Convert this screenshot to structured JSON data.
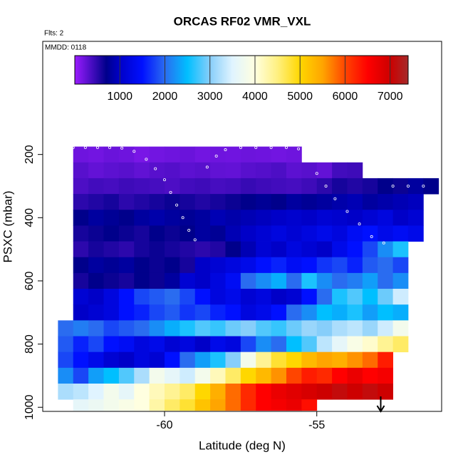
{
  "chart_data": {
    "type": "heatmap",
    "title": "ORCAS RF02 VMR_VXL",
    "annotations": [
      "Flts: 2",
      "MMDD: 0118"
    ],
    "xlabel": "Latitude (deg N)",
    "ylabel": "PSXC (mbar)",
    "xlim": [
      -64.0,
      -50.9
    ],
    "xticks": [
      -60,
      -55
    ],
    "ylim": [
      1013,
      -158
    ],
    "yticks": [
      200,
      400,
      600,
      800,
      1000
    ],
    "clim": [
      0,
      7400
    ],
    "cticks": [
      1000,
      2000,
      3000,
      4000,
      5000,
      6000,
      7000
    ],
    "colorscale": [
      {
        "value": 0,
        "color": "#9a1cff"
      },
      {
        "value": 700,
        "color": "#00008b"
      },
      {
        "value": 1000,
        "color": "#0000c8"
      },
      {
        "value": 1500,
        "color": "#0010ff"
      },
      {
        "value": 2000,
        "color": "#2a6cf0"
      },
      {
        "value": 2500,
        "color": "#00bfff"
      },
      {
        "value": 3000,
        "color": "#87cefa"
      },
      {
        "value": 3500,
        "color": "#e0f4ff"
      },
      {
        "value": 4000,
        "color": "#ffffe0"
      },
      {
        "value": 4500,
        "color": "#fff080"
      },
      {
        "value": 5000,
        "color": "#ffd700"
      },
      {
        "value": 5500,
        "color": "#ffa500"
      },
      {
        "value": 6000,
        "color": "#ff4500"
      },
      {
        "value": 6500,
        "color": "#ff0000"
      },
      {
        "value": 7000,
        "color": "#cd0000"
      },
      {
        "value": 7400,
        "color": "#a52a2a"
      }
    ],
    "dx": 0.5,
    "rows": [
      {
        "ptop": 175,
        "pbot": 225,
        "x0": -63,
        "values": [
          200,
          180,
          220,
          200,
          150,
          180,
          200,
          220,
          180,
          200,
          190,
          210,
          200,
          180,
          200
        ]
      },
      {
        "ptop": 225,
        "pbot": 275,
        "x0": -63,
        "values": [
          300,
          250,
          280,
          300,
          260,
          300,
          320,
          280,
          300,
          260,
          250,
          300,
          320,
          350,
          280,
          300,
          250,
          400,
          420
        ]
      },
      {
        "ptop": 275,
        "pbot": 325,
        "x0": -63,
        "values": [
          350,
          400,
          380,
          420,
          400,
          380,
          350,
          400,
          420,
          380,
          400,
          450,
          420,
          400,
          380,
          420,
          500,
          600,
          550,
          600,
          700,
          650,
          800,
          700
        ]
      },
      {
        "ptop": 325,
        "pbot": 375,
        "x0": -63,
        "values": [
          500,
          550,
          600,
          500,
          550,
          600,
          650,
          600,
          550,
          600,
          650,
          700,
          750,
          700,
          800,
          750,
          800,
          850,
          900,
          800,
          850,
          900,
          950
        ]
      },
      {
        "ptop": 375,
        "pbot": 425,
        "x0": -63,
        "values": [
          700,
          800,
          750,
          700,
          800,
          850,
          800,
          750,
          800,
          900,
          850,
          900,
          950,
          1000,
          1050,
          1000,
          1100,
          1050,
          1000,
          1100,
          1200,
          1000,
          1100
        ]
      },
      {
        "ptop": 425,
        "pbot": 475,
        "x0": -63,
        "values": [
          600,
          650,
          700,
          650,
          600,
          700,
          650,
          700,
          800,
          750,
          900,
          1000,
          1100,
          1200,
          1100,
          1200,
          1300,
          1200,
          1400,
          1500,
          1300,
          1400,
          1300
        ]
      },
      {
        "ptop": 475,
        "pbot": 525,
        "x0": -63,
        "values": [
          500,
          600,
          550,
          500,
          600,
          650,
          600,
          550,
          500,
          550,
          700,
          900,
          1100,
          1000,
          1200,
          1100,
          1000,
          1300,
          1500,
          1800,
          2200,
          2600
        ]
      },
      {
        "ptop": 525,
        "pbot": 575,
        "x0": -63,
        "values": [
          700,
          800,
          750,
          800,
          700,
          650,
          700,
          600,
          1000,
          1100,
          1200,
          1300,
          1500,
          1600,
          1400,
          1500,
          1700,
          1800,
          1600,
          1900,
          2000,
          1800
        ]
      },
      {
        "ptop": 575,
        "pbot": 625,
        "x0": -63,
        "values": [
          600,
          700,
          650,
          600,
          700,
          650,
          800,
          1100,
          1000,
          1200,
          1400,
          2000,
          2200,
          2400,
          2000,
          2600,
          2200,
          2000,
          2100,
          2300,
          2000,
          2200
        ]
      },
      {
        "ptop": 625,
        "pbot": 675,
        "x0": -63,
        "values": [
          1100,
          1000,
          1200,
          1500,
          1800,
          1900,
          2000,
          1800,
          1500,
          1200,
          1300,
          1100,
          1200,
          1000,
          1100,
          1500,
          2000,
          2600,
          2800,
          2500,
          2900,
          3400
        ]
      },
      {
        "ptop": 675,
        "pbot": 725,
        "x0": -63,
        "values": [
          1000,
          1100,
          1200,
          1500,
          1600,
          1800,
          1900,
          1700,
          1800,
          1600,
          1500,
          1200,
          1300,
          1500,
          2000,
          2200,
          2500,
          2400,
          2600,
          2300,
          2500,
          2400
        ]
      },
      {
        "ptop": 725,
        "pbot": 775,
        "x0": -63.5,
        "values": [
          2000,
          2100,
          2000,
          1800,
          1900,
          2000,
          2200,
          2400,
          2600,
          2800,
          2700,
          2900,
          3000,
          2800,
          2700,
          2900,
          3100,
          3000,
          3200,
          3300,
          3100,
          3400,
          3800
        ]
      },
      {
        "ptop": 775,
        "pbot": 825,
        "x0": -63.5,
        "values": [
          1900,
          1600,
          1800,
          1500,
          1400,
          1200,
          1300,
          1100,
          1200,
          1000,
          1300,
          1200,
          1800,
          2200,
          2000,
          2500,
          2800,
          3300,
          3600,
          3900,
          4100,
          4400,
          4600
        ]
      },
      {
        "ptop": 825,
        "pbot": 875,
        "x0": -63.5,
        "values": [
          1800,
          1500,
          1300,
          1100,
          1000,
          1200,
          1100,
          1500,
          2000,
          2300,
          2600,
          3000,
          3800,
          4400,
          4800,
          5000,
          5300,
          5500,
          5400,
          5600,
          5800,
          6300
        ]
      },
      {
        "ptop": 875,
        "pbot": 925,
        "x0": -63.5,
        "values": [
          2200,
          1800,
          2300,
          2500,
          2800,
          3200,
          3800,
          3600,
          3400,
          3800,
          4200,
          4600,
          5000,
          5300,
          5600,
          6000,
          6300,
          6200,
          6500,
          6700,
          6500,
          6600
        ]
      },
      {
        "ptop": 925,
        "pbot": 975,
        "x0": -63.5,
        "values": [
          3200,
          3300,
          3500,
          3800,
          3600,
          4000,
          4200,
          4400,
          4600,
          5000,
          5400,
          5800,
          6200,
          6500,
          6700,
          6800,
          6900,
          7000,
          7100,
          7000,
          7100,
          7000
        ]
      },
      {
        "ptop": 975,
        "pbot": 1010,
        "x0": -63,
        "values": [
          3600,
          3700,
          3800,
          3900,
          4000,
          4300,
          4600,
          4800,
          5200,
          5500,
          5800,
          6200,
          6500,
          6600,
          6700,
          6400
        ]
      }
    ],
    "track": {
      "x": [
        -63,
        -62.6,
        -62.2,
        -61.8,
        -61.4,
        -61.0,
        -60.6,
        -60.3,
        -60.0,
        -59.8,
        -59.6,
        -59.4,
        -59.2,
        -59.0,
        -58.6,
        -58.3,
        -58.0,
        -57.5,
        -57.0,
        -56.5,
        -56.0,
        -55.6,
        -55.3,
        -55.0,
        -54.7,
        -54.4,
        -54.0,
        -53.6,
        -53.2,
        -52.8,
        -52.5,
        -52.0,
        -51.5
      ],
      "y": [
        178,
        178,
        178,
        178,
        180,
        190,
        215,
        245,
        280,
        320,
        360,
        400,
        440,
        470,
        240,
        205,
        185,
        178,
        178,
        178,
        178,
        182,
        220,
        260,
        300,
        340,
        380,
        420,
        460,
        480,
        300,
        300,
        300
      ]
    },
    "arrow_x": -52.9
  }
}
